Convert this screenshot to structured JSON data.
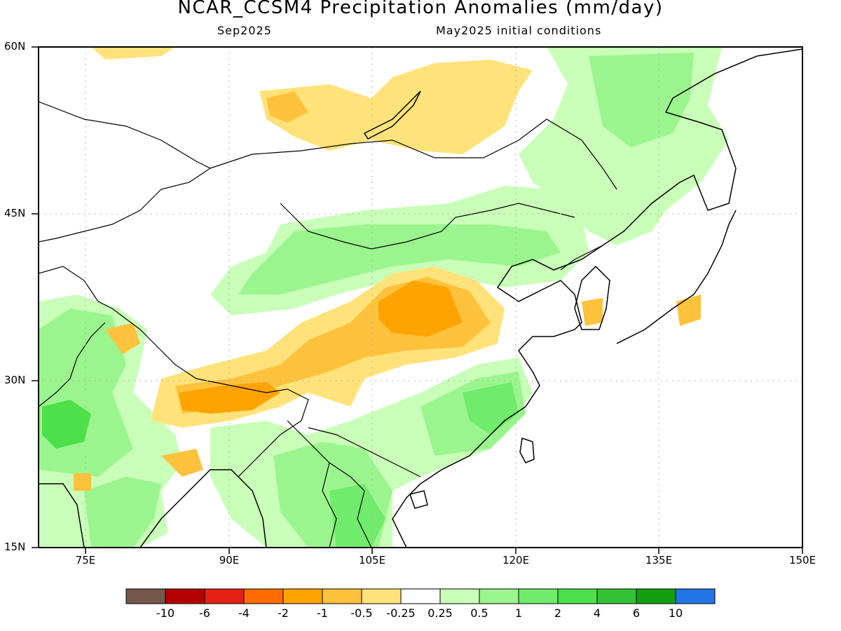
{
  "title": "NCAR_CCSM4 Precipitation Anomalies (mm/day)",
  "subtitle_left": "Sep2025",
  "subtitle_right": "May2025 initial conditions",
  "lat_labels": [
    "60N",
    "45N",
    "30N",
    "15N"
  ],
  "lon_labels": [
    "75E",
    "90E",
    "105E",
    "120E",
    "135E",
    "150E"
  ],
  "colorbar": {
    "colors": [
      "#75574a",
      "#b50000",
      "#e32012",
      "#ff6b00",
      "#ffa300",
      "#ffc23d",
      "#ffe37a",
      "#ffffff",
      "#c9ffb8",
      "#9bf58e",
      "#70eb6b",
      "#4de04a",
      "#33c233",
      "#129e12",
      "#2175e6"
    ],
    "labels": [
      "-10",
      "-6",
      "-4",
      "-2",
      "-1",
      "-0.5",
      "-0.25",
      "0.25",
      "0.5",
      "1",
      "2",
      "4",
      "6",
      "10"
    ]
  }
}
